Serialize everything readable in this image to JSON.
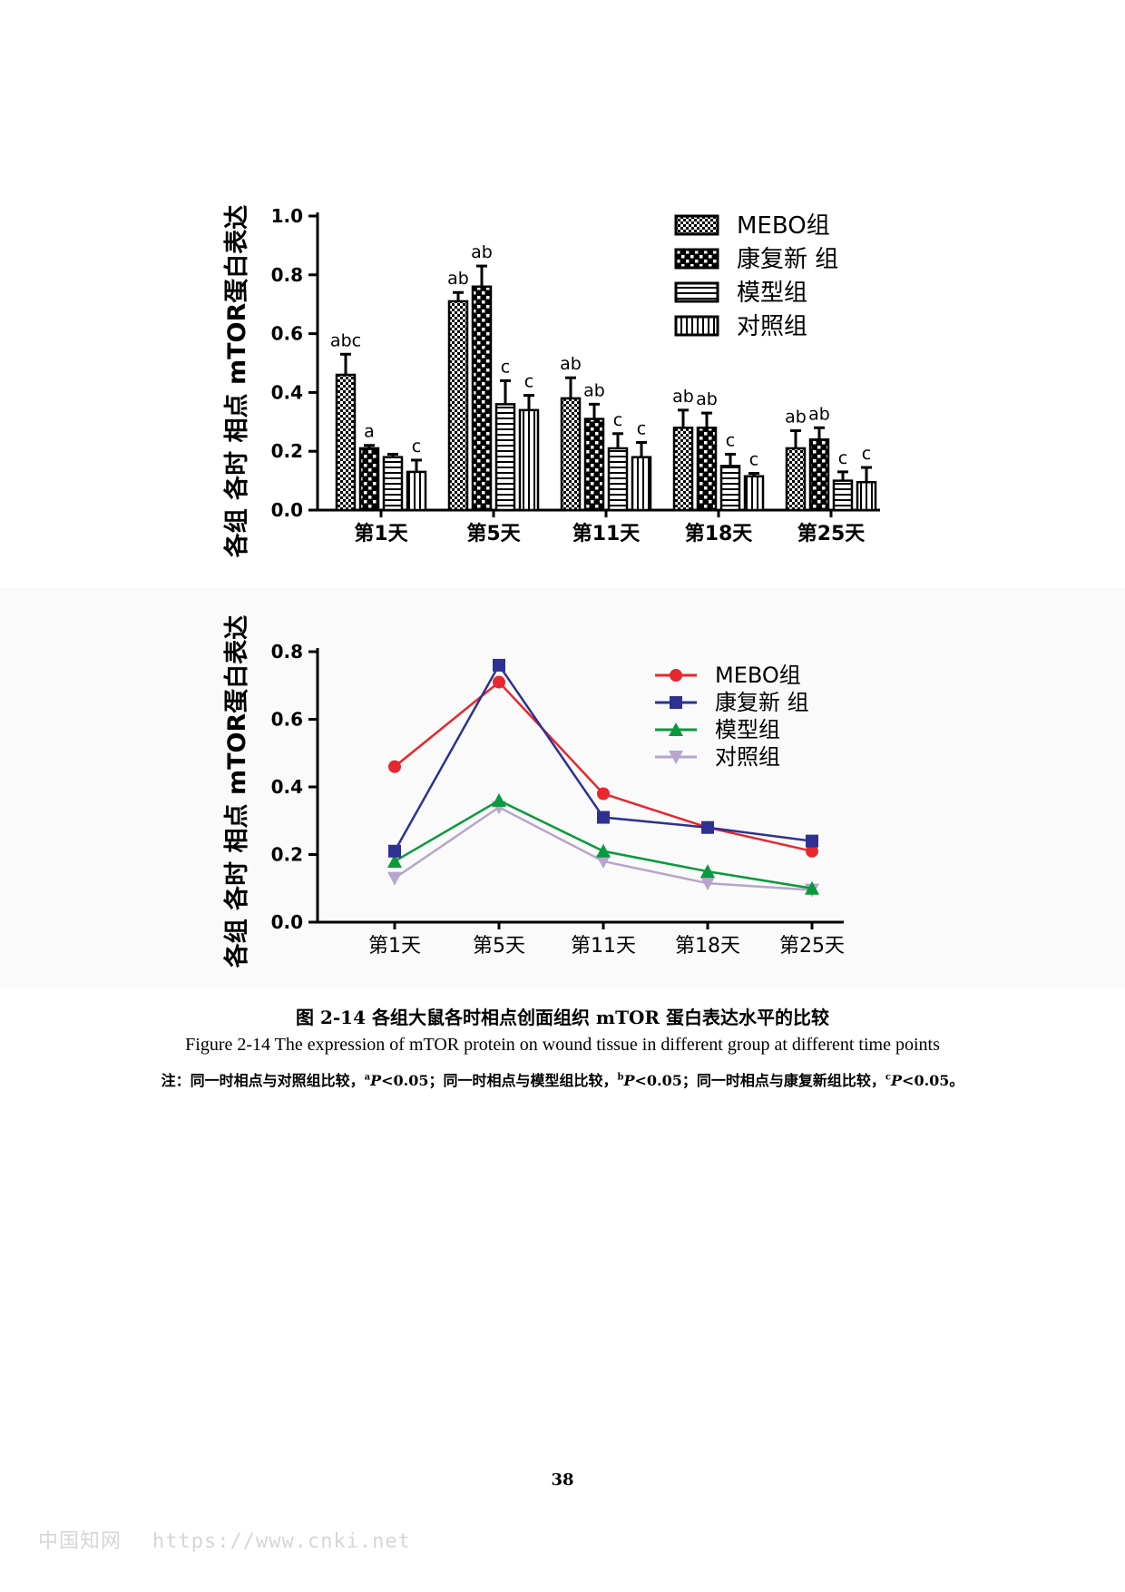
{
  "chart_data": [
    {
      "type": "bar",
      "ylabel": "各组 各时 相点 mTOR蛋白表达",
      "ylim": [
        0,
        1.0
      ],
      "yticks": [
        "0.0",
        "0.2",
        "0.4",
        "0.6",
        "0.8",
        "1.0"
      ],
      "categories": [
        "第1天",
        "第5天",
        "第11天",
        "第18天",
        "第25天"
      ],
      "legend_position": "top-right",
      "series": [
        {
          "name": "MEBO组",
          "pattern": "check",
          "values": [
            0.46,
            0.71,
            0.38,
            0.28,
            0.21
          ],
          "errors": [
            0.07,
            0.03,
            0.07,
            0.06,
            0.06
          ],
          "labels": [
            "abc",
            "ab",
            "ab",
            "ab",
            "ab"
          ]
        },
        {
          "name": "康复新 组",
          "pattern": "checker",
          "values": [
            0.21,
            0.76,
            0.31,
            0.28,
            0.24
          ],
          "errors": [
            0.01,
            0.07,
            0.05,
            0.05,
            0.04
          ],
          "labels": [
            "a",
            "ab",
            "ab",
            "ab",
            "ab"
          ]
        },
        {
          "name": "模型组",
          "pattern": "hlines",
          "values": [
            0.18,
            0.36,
            0.21,
            0.15,
            0.1
          ],
          "errors": [
            0.01,
            0.08,
            0.05,
            0.04,
            0.03
          ],
          "labels": [
            "",
            "c",
            "c",
            "c",
            "c"
          ]
        },
        {
          "name": "对照组",
          "pattern": "vlines",
          "values": [
            0.13,
            0.34,
            0.18,
            0.115,
            0.095
          ],
          "errors": [
            0.04,
            0.05,
            0.05,
            0.01,
            0.05
          ],
          "labels": [
            "c",
            "c",
            "c",
            "c",
            "c"
          ]
        }
      ]
    },
    {
      "type": "line",
      "ylabel": "各组 各时 相点 mTOR蛋白表达",
      "ylim": [
        0,
        0.8
      ],
      "yticks": [
        "0.0",
        "0.2",
        "0.4",
        "0.6",
        "0.8"
      ],
      "categories": [
        "第1天",
        "第5天",
        "第11天",
        "第18天",
        "第25天"
      ],
      "legend_position": "top-right",
      "series": [
        {
          "name": "MEBO组",
          "color": "#e8262d",
          "marker": "circle",
          "values": [
            0.46,
            0.71,
            0.38,
            0.28,
            0.21
          ]
        },
        {
          "name": "康复新 组",
          "color": "#2e3192",
          "marker": "square",
          "values": [
            0.21,
            0.76,
            0.31,
            0.28,
            0.24
          ]
        },
        {
          "name": "模型组",
          "color": "#0a9a3e",
          "marker": "triangle-up",
          "values": [
            0.18,
            0.36,
            0.21,
            0.15,
            0.1
          ]
        },
        {
          "name": "对照组",
          "color": "#b6a6cc",
          "marker": "triangle-down",
          "values": [
            0.13,
            0.34,
            0.18,
            0.115,
            0.095
          ]
        }
      ]
    }
  ],
  "caption": {
    "cn": "图 2-14  各组大鼠各时相点创面组织 mTOR 蛋白表达水平的比较",
    "en": "Figure 2-14 The expression of mTOR protein on wound tissue in different group at different time points",
    "note_1": "注：同一时相点与对照组比较，",
    "note_sup_a": "a",
    "note_p1": "P",
    "note_2": "<0.05；同一时相点与模型组比较，",
    "note_sup_b": "b",
    "note_p2": "P",
    "note_3": "<0.05；同一时相点与康复新组比较，",
    "note_sup_c": "c",
    "note_p3": "P",
    "note_4": "<0.05。"
  },
  "page_number": "38",
  "watermark": {
    "cn": "中国知网",
    "url": "https://www.cnki.net"
  }
}
